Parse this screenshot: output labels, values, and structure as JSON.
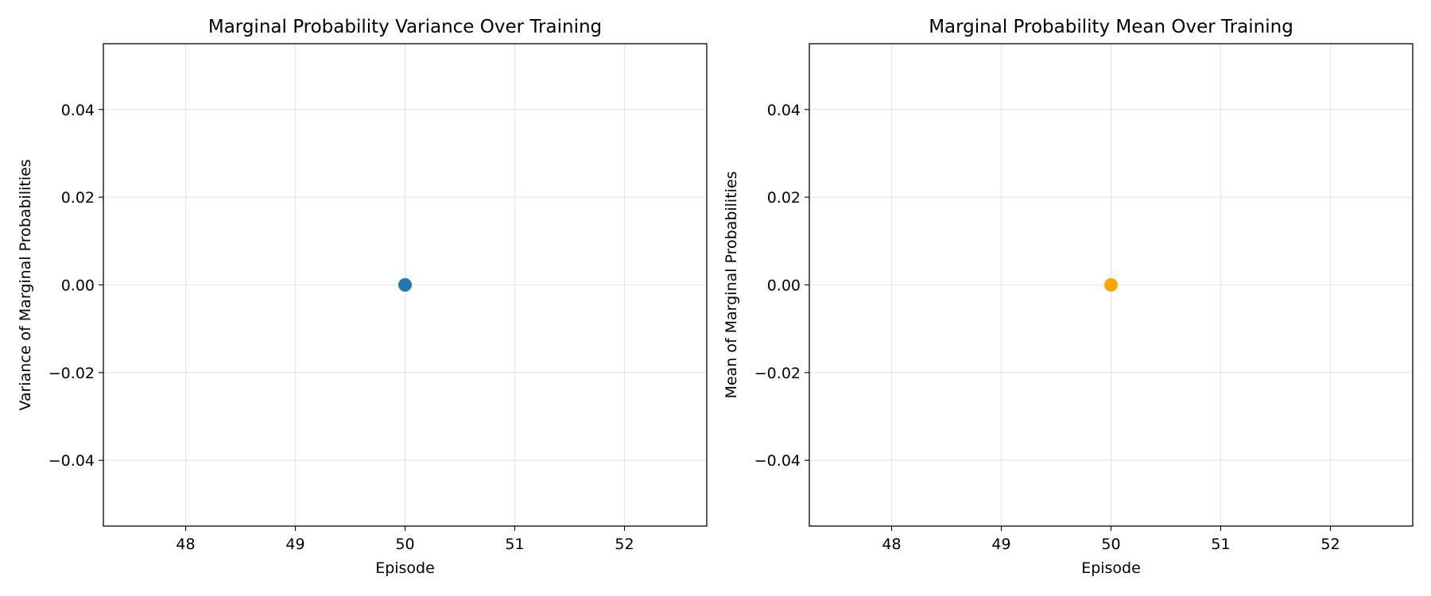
{
  "chart_data": [
    {
      "type": "scatter",
      "title": "Marginal Probability Variance Over Training",
      "xlabel": "Episode",
      "ylabel": "Variance of Marginal Probabilities",
      "x": [
        50
      ],
      "y": [
        0.0
      ],
      "color": "#1f77b4",
      "xlim": [
        47.25,
        52.75
      ],
      "ylim": [
        -0.055,
        0.055
      ],
      "xticks": [
        48,
        49,
        50,
        51,
        52
      ],
      "xtick_labels": [
        "48",
        "49",
        "50",
        "51",
        "52"
      ],
      "yticks": [
        -0.04,
        -0.02,
        0.0,
        0.02,
        0.04
      ],
      "ytick_labels": [
        "−0.04",
        "−0.02",
        "0.00",
        "0.02",
        "0.04"
      ],
      "grid": true
    },
    {
      "type": "scatter",
      "title": "Marginal Probability Mean Over Training",
      "xlabel": "Episode",
      "ylabel": "Mean of Marginal Probabilities",
      "x": [
        50
      ],
      "y": [
        0.0
      ],
      "color": "#ffa500",
      "xlim": [
        47.25,
        52.75
      ],
      "ylim": [
        -0.055,
        0.055
      ],
      "xticks": [
        48,
        49,
        50,
        51,
        52
      ],
      "xtick_labels": [
        "48",
        "49",
        "50",
        "51",
        "52"
      ],
      "yticks": [
        -0.04,
        -0.02,
        0.0,
        0.02,
        0.04
      ],
      "ytick_labels": [
        "−0.04",
        "−0.02",
        "0.00",
        "0.02",
        "0.04"
      ],
      "grid": true
    }
  ]
}
